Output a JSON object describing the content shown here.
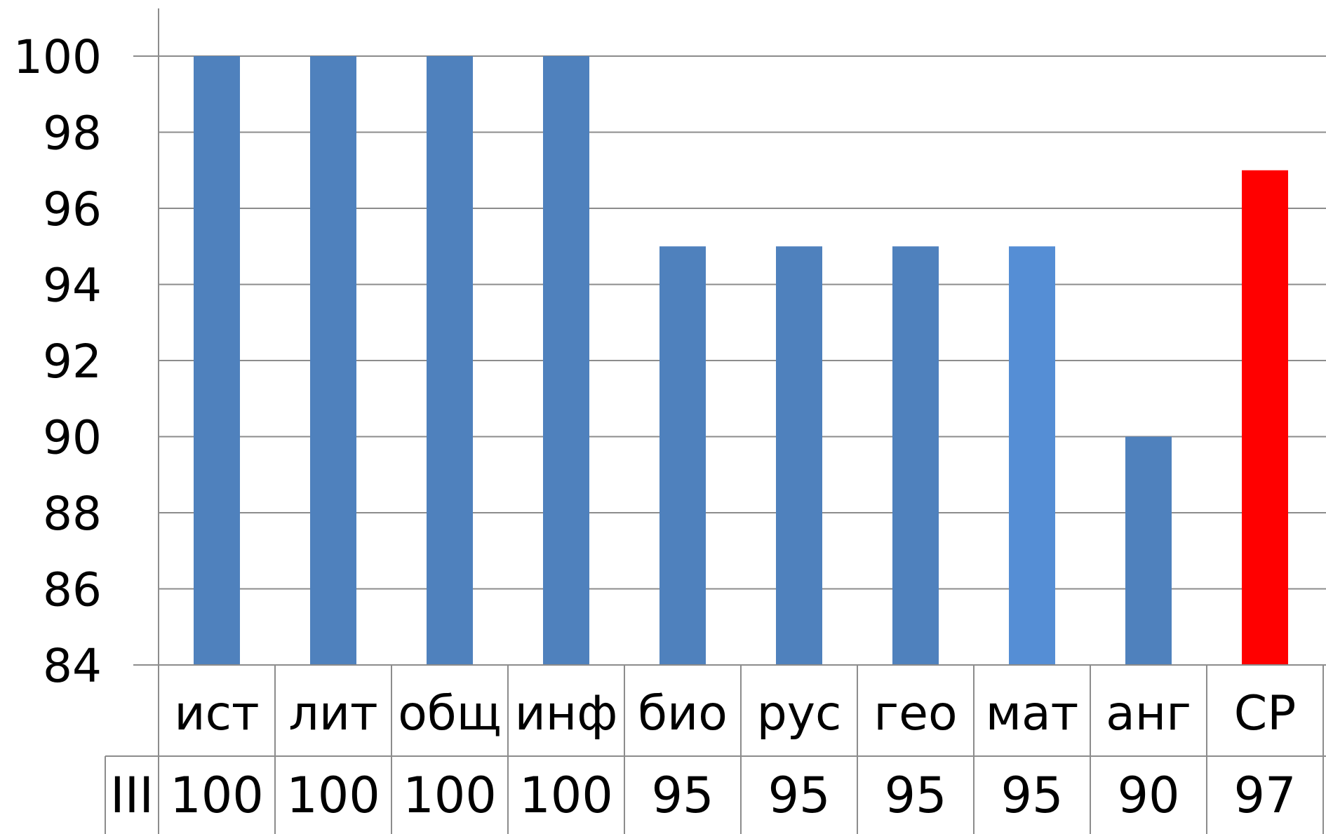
{
  "chart_data": {
    "type": "bar",
    "categories": [
      "ист",
      "лит",
      "общ",
      "инф",
      "био",
      "рус",
      "гео",
      "мат",
      "анг",
      "СР"
    ],
    "series": [
      {
        "name": "III",
        "values": [
          100,
          100,
          100,
          100,
          95,
          95,
          95,
          95,
          90,
          97
        ]
      }
    ],
    "title": "",
    "xlabel": "",
    "ylabel": "",
    "ylim": [
      84,
      100
    ],
    "yticks": [
      84,
      86,
      88,
      90,
      92,
      94,
      96,
      98,
      100
    ],
    "grid": true,
    "legend": "none",
    "data_table": true,
    "colors": {
      "default_bar": "#4f81bd",
      "highlight_bars": {
        "мат": "#558ed5",
        "СР": "#ff0000"
      },
      "gridline": "#8c8c8c"
    }
  }
}
